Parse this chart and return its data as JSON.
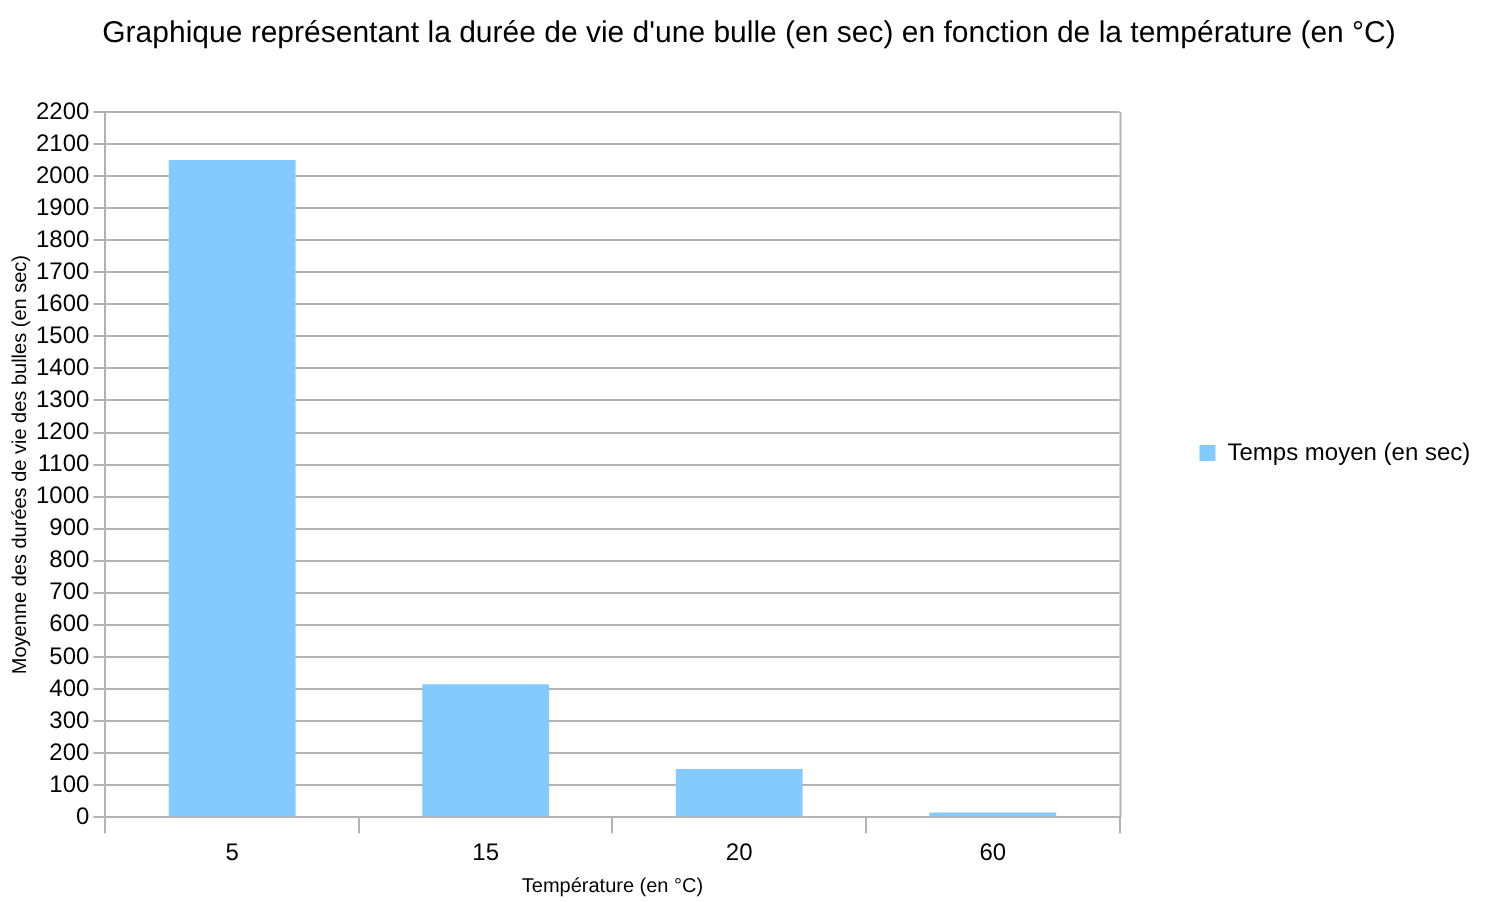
{
  "chart_data": {
    "type": "bar",
    "title": "Graphique représentant la durée de vie d'une bulle (en sec) en fonction de la température (en °C)",
    "xlabel": "Température (en °C)",
    "ylabel": "Moyenne des durées de vie des bulles (en sec)",
    "categories": [
      "5",
      "15",
      "20",
      "60"
    ],
    "series": [
      {
        "name": "Temps moyen (en sec)",
        "color": "#83caff",
        "values": [
          2050,
          415,
          150,
          15
        ]
      }
    ],
    "ylim": [
      0,
      2200
    ],
    "yticks": [
      0,
      100,
      200,
      300,
      400,
      500,
      600,
      700,
      800,
      900,
      1000,
      1100,
      1200,
      1300,
      1400,
      1500,
      1600,
      1700,
      1800,
      1900,
      2000,
      2100,
      2200
    ],
    "grid": "y",
    "legend": "right"
  }
}
